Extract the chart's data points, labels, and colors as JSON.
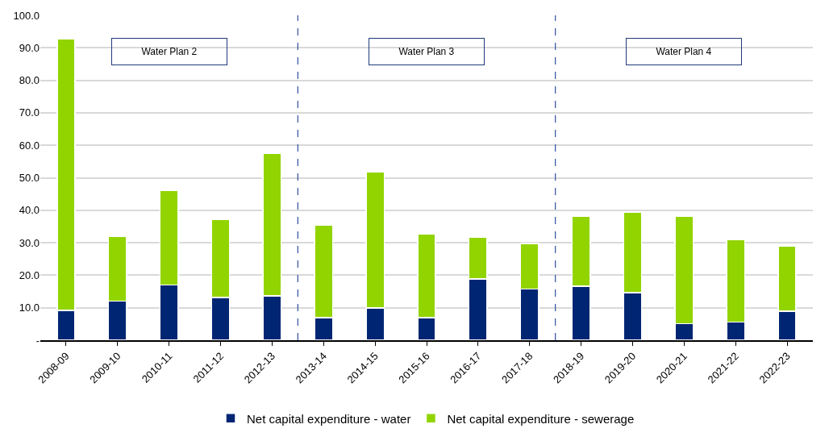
{
  "chart_data": {
    "type": "bar",
    "stacked": true,
    "categories": [
      "2008-09",
      "2009-10",
      "2010-11",
      "2011-12",
      "2012-13",
      "2013-14",
      "2014-15",
      "2015-16",
      "2016-17",
      "2017-18",
      "2018-19",
      "2019-20",
      "2020-21",
      "2021-22",
      "2022-23"
    ],
    "series": [
      {
        "name": "Net capital expenditure - water",
        "color": "#002673",
        "values": [
          9.2,
          12.0,
          17.0,
          13.2,
          13.7,
          7.0,
          9.9,
          7.0,
          18.8,
          15.8,
          16.6,
          14.6,
          5.1,
          5.6,
          8.9
        ]
      },
      {
        "name": "Net capital expenditure - sewerage",
        "color": "#92d400",
        "values": [
          83.6,
          20.0,
          29.2,
          24.0,
          43.9,
          28.4,
          41.9,
          25.7,
          12.8,
          14.0,
          21.5,
          24.8,
          33.0,
          25.4,
          20.1
        ]
      }
    ],
    "ylim": [
      0,
      100
    ],
    "yticks": [
      {
        "value": 0,
        "label": "-"
      },
      {
        "value": 10,
        "label": "10.0"
      },
      {
        "value": 20,
        "label": "20.0"
      },
      {
        "value": 30,
        "label": "30.0"
      },
      {
        "value": 40,
        "label": "40.0"
      },
      {
        "value": 50,
        "label": "50.0"
      },
      {
        "value": 60,
        "label": "60.0"
      },
      {
        "value": 70,
        "label": "70.0"
      },
      {
        "value": 80,
        "label": "80.0"
      },
      {
        "value": 90,
        "label": "90.0"
      },
      {
        "value": 100,
        "label": "100.0"
      }
    ],
    "annotations": [
      "Water Plan 2",
      "Water Plan 3",
      "Water Plan 4"
    ],
    "grid": "y",
    "legend": "bottom"
  }
}
